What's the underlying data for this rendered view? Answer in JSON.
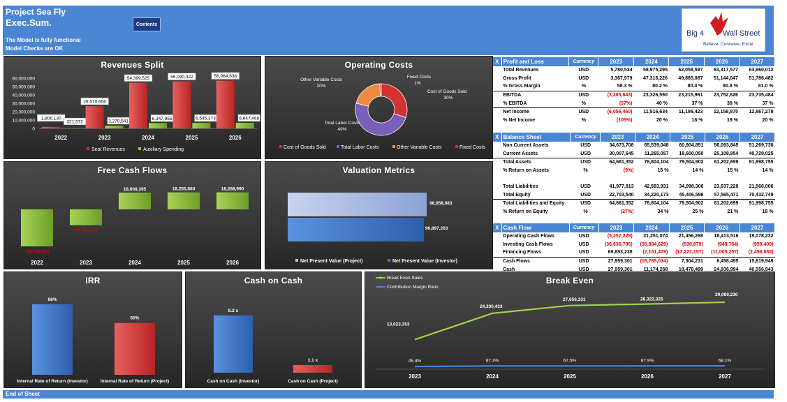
{
  "header": {
    "title": "Project Sea Fly",
    "subtitle": "Exec.Sum.",
    "contents_label": "Contents",
    "note_line1": "The Model is fully functional",
    "note_line2": "Model Checks are OK",
    "logo_line1": "Big 4",
    "logo_line2": "Wall Street",
    "logo_tagline": "Believe, Conceive, Excel"
  },
  "colors": {
    "header_blue": "#4a86d4",
    "red": "#d23232",
    "green": "#8cbf3a",
    "purple": "#7a5fb8",
    "orange": "#f08a3c",
    "blue": "#3d73c4",
    "negative": "#e00000"
  },
  "panels": {
    "revenues_split": "Revenues Split",
    "operating_costs": "Operating Costs",
    "free_cash_flows": "Free Cash Flows",
    "valuation_metrics": "Valuation Metrics",
    "irr": "IRR",
    "cash_on_cash": "Cash on Cash",
    "break_even": "Break Even"
  },
  "chart_data": [
    {
      "id": "revenues",
      "type": "bar",
      "title": "Revenues Split",
      "categories": [
        "2022",
        "2023",
        "2024",
        "2025",
        "2026"
      ],
      "series": [
        {
          "name": "Seat Revenues",
          "values": [
            1806130,
            26570656,
            54399525,
            56090422,
            56964838
          ],
          "labels": [
            "1,806,130",
            "26,570,656",
            "54,399,525",
            "56,090,422",
            "56,964,838"
          ]
        },
        {
          "name": "Auxiliary Spending",
          "values": [
            321572,
            3279541,
            6347955,
            6545373,
            6647466
          ],
          "labels": [
            "321,572",
            "3,279,541",
            "6,347,955",
            "6,545,373",
            "6,647,466"
          ]
        }
      ],
      "yticks": [
        "0",
        "10,000,000",
        "20,000,000",
        "30,000,000",
        "40,000,000",
        "50,000,000",
        "60,000,000"
      ],
      "ylim": [
        0,
        60000000
      ]
    },
    {
      "id": "opcosts",
      "type": "pie",
      "title": "Operating Costs",
      "slices": [
        {
          "name": "Cost of Goods Sold",
          "value": 30,
          "label": "30%"
        },
        {
          "name": "Total Labor Costs",
          "value": 49,
          "label": "49%"
        },
        {
          "name": "Other Variable Costs",
          "value": 20,
          "label": "20%"
        },
        {
          "name": "Fixed Costs",
          "value": 1,
          "label": "1%"
        }
      ]
    },
    {
      "id": "fcf",
      "type": "bar",
      "title": "Free Cash Flows",
      "categories": [
        "2022",
        "2023",
        "2024",
        "2025",
        "2026"
      ],
      "values": [
        -39703419,
        -17014159,
        18008395,
        18255860,
        18288990
      ],
      "labels": [
        "-39,703,419",
        "-17,014,159",
        "18,008,395",
        "18,255,860",
        "18,288,990"
      ]
    },
    {
      "id": "valuation",
      "type": "bar",
      "title": "Valuation Metrics",
      "series": [
        {
          "name": "Net Present Value (Project)",
          "value": 98958083,
          "label": "98,958,083"
        },
        {
          "name": "Net Present Value (Investor)",
          "value": 96897263,
          "label": "96,897,263"
        }
      ]
    },
    {
      "id": "irr",
      "type": "bar",
      "title": "IRR",
      "categories": [
        "Internal Rate of Return (Investor)",
        "Internal Rate of Return (Project)"
      ],
      "values": [
        68,
        50
      ],
      "labels": [
        "68%",
        "50%"
      ]
    },
    {
      "id": "coc",
      "type": "bar",
      "title": "Cash on Cash",
      "categories": [
        "Cash on Cash (Investor)",
        "Cash on Cash (Project)"
      ],
      "values": [
        8.2,
        1.1
      ],
      "labels": [
        "8.2 x",
        "1.1 x"
      ]
    },
    {
      "id": "breakeven",
      "type": "line",
      "title": "Break Even",
      "categories": [
        "2023",
        "2024",
        "2025",
        "2026",
        "2027"
      ],
      "series": [
        {
          "name": "Break Even Sales",
          "values": [
            13023353,
            24330433,
            27656331,
            28322325,
            29089230
          ],
          "labels": [
            "13,023,353",
            "24,330,433",
            "27,656,331",
            "28,322,325",
            "29,089,230"
          ]
        },
        {
          "name": "Contribution Margin Ratio",
          "values": [
            45.4,
            67.3,
            67.5,
            67.9,
            68.1
          ],
          "labels": [
            "45.4%",
            "67.3%",
            "67.5%",
            "67.9%",
            "68.1%"
          ]
        }
      ]
    }
  ],
  "tables": {
    "years": [
      "2023",
      "2024",
      "2025",
      "2026",
      "2027"
    ],
    "x_label": "X",
    "currency_label": "Currency",
    "pl": {
      "title": "Profit and Loss",
      "rows": [
        {
          "label": "Total Revenues",
          "unit": "USD",
          "vals": [
            "5,780,534",
            "58,975,295",
            "62,058,597",
            "63,317,577",
            "63,960,012"
          ]
        },
        {
          "label": "Gross Profit",
          "unit": "USD",
          "vals": [
            "3,367,979",
            "47,316,226",
            "49,885,067",
            "51,144,047",
            "51,786,482"
          ]
        },
        {
          "label": "% Gross Margin",
          "unit": "%",
          "vals": [
            "58.3 %",
            "80.2 %",
            "80.4 %",
            "80.8 %",
            "81.0 %"
          ]
        },
        {
          "label": "EBITDA",
          "unit": "USD",
          "vals": [
            "(3,285,643)",
            "23,326,590",
            "23,215,961",
            "23,752,626",
            "23,735,484"
          ]
        },
        {
          "label": "% EBITDA",
          "unit": "%",
          "vals": [
            "(57%)",
            "40 %",
            "37 %",
            "38 %",
            "37 %"
          ]
        },
        {
          "label": "Net Income",
          "unit": "USD",
          "vals": [
            "(6,056,460)",
            "11,516,634",
            "11,186,423",
            "12,158,875",
            "12,867,278"
          ]
        },
        {
          "label": "% Net Income",
          "unit": "%",
          "vals": [
            "(105%)",
            "20 %",
            "18 %",
            "19 %",
            "20 %"
          ]
        }
      ]
    },
    "bs": {
      "title": "Balance Sheet",
      "rows": [
        {
          "label": "Non Current Assets",
          "unit": "USD",
          "vals": [
            "34,673,708",
            "65,539,048",
            "60,904,851",
            "56,093,845",
            "51,269,730"
          ]
        },
        {
          "label": "Current Assets",
          "unit": "USD",
          "vals": [
            "30,007,645",
            "11,265,057",
            "18,600,050",
            "25,108,854",
            "40,729,025"
          ]
        },
        {
          "label": "Total Assets",
          "unit": "USD",
          "vals": [
            "64,681,352",
            "76,804,104",
            "79,504,902",
            "81,202,699",
            "91,998,755"
          ]
        },
        {
          "label": "% Return on Assets",
          "unit": "%",
          "vals": [
            "(9%)",
            "15 %",
            "14 %",
            "15 %",
            "14 %"
          ]
        },
        {
          "label": "",
          "unit": "",
          "vals": [
            "",
            "",
            "",
            "",
            ""
          ]
        },
        {
          "label": "Total Liabilities",
          "unit": "USD",
          "vals": [
            "41,977,813",
            "42,583,931",
            "34,098,306",
            "23,637,228",
            "21,566,006"
          ]
        },
        {
          "label": "Total Equity",
          "unit": "USD",
          "vals": [
            "22,703,540",
            "34,220,173",
            "45,406,596",
            "57,565,471",
            "70,432,749"
          ]
        },
        {
          "label": "Total Liabilities and Equity",
          "unit": "USD",
          "vals": [
            "64,681,352",
            "76,804,104",
            "79,504,902",
            "81,202,699",
            "91,998,755"
          ]
        },
        {
          "label": "% Return on Equity",
          "unit": "%",
          "vals": [
            "(27%)",
            "34 %",
            "25 %",
            "21 %",
            "18 %"
          ]
        }
      ]
    },
    "cf": {
      "title": "Cash Flow",
      "rows": [
        {
          "label": "Operating Cash Flows",
          "unit": "USD",
          "vals": [
            "(5,257,228)",
            "21,251,074",
            "21,456,268",
            "18,413,516",
            "19,078,232"
          ]
        },
        {
          "label": "Investing Cash Flows",
          "unit": "USD",
          "vals": [
            "(36,636,706)",
            "(35,884,629)",
            "(930,879)",
            "(949,764)",
            "(959,400)"
          ]
        },
        {
          "label": "Financing Flows",
          "unit": "USD",
          "vals": [
            "69,853,238",
            "(2,151,478)",
            "(13,221,157)",
            "(11,005,257)",
            "(2,498,882)"
          ]
        },
        {
          "label": "Cash Flows",
          "unit": "USD",
          "vals": [
            "27,959,301",
            "(16,785,034)",
            "7,304,231",
            "6,458,495",
            "15,619,949"
          ]
        },
        {
          "label": "Cash",
          "unit": "USD",
          "vals": [
            "27,959,301",
            "11,174,268",
            "18,478,499",
            "24,936,994",
            "40,556,943"
          ]
        }
      ]
    }
  },
  "footer": {
    "label": "End of Sheet"
  }
}
